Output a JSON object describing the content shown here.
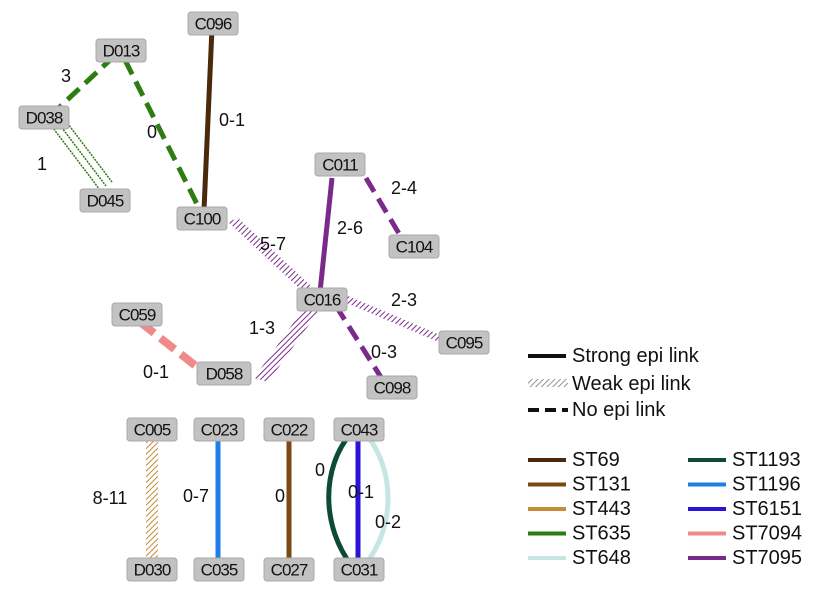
{
  "nodes": {
    "C096": "C096",
    "D013": "D013",
    "D038": "D038",
    "D045": "D045",
    "C100": "C100",
    "C011": "C011",
    "C104": "C104",
    "C016": "C016",
    "C095": "C095",
    "C059": "C059",
    "D058": "D058",
    "C098": "C098",
    "C005": "C005",
    "D030": "D030",
    "C023": "C023",
    "C035": "C035",
    "C022": "C022",
    "C027": "C027",
    "C043": "C043",
    "C031": "C031"
  },
  "edges": [
    {
      "id": "d038-d013",
      "from": "D038",
      "to": "D013",
      "label": "3",
      "style": "none",
      "st": "ST635"
    },
    {
      "id": "d013-c100",
      "from": "D013",
      "to": "C100",
      "label": "0",
      "style": "none",
      "st": "ST635"
    },
    {
      "id": "d038-d045",
      "from": "D038",
      "to": "D045",
      "label": "1",
      "style": "weak",
      "st": "ST635"
    },
    {
      "id": "c096-c100",
      "from": "C096",
      "to": "C100",
      "label": "0-1",
      "style": "strong",
      "st": "ST69"
    },
    {
      "id": "c100-c016",
      "from": "C100",
      "to": "C016",
      "label": "5-7",
      "style": "weak",
      "st": "ST7095"
    },
    {
      "id": "c011-c016",
      "from": "C011",
      "to": "C016",
      "label": "2-6",
      "style": "strong",
      "st": "ST7095"
    },
    {
      "id": "c011-c104",
      "from": "C011",
      "to": "C104",
      "label": "2-4",
      "style": "none",
      "st": "ST7095"
    },
    {
      "id": "c016-c095",
      "from": "C016",
      "to": "C095",
      "label": "2-3",
      "style": "weak",
      "st": "ST7095"
    },
    {
      "id": "c016-d058",
      "from": "C016",
      "to": "D058",
      "label": "1-3",
      "style": "weak",
      "st": "ST7095"
    },
    {
      "id": "c016-c098",
      "from": "C016",
      "to": "C098",
      "label": "0-3",
      "style": "none",
      "st": "ST7095"
    },
    {
      "id": "c059-d058",
      "from": "C059",
      "to": "D058",
      "label": "0-1",
      "style": "none",
      "st": "ST7094"
    },
    {
      "id": "c005-d030",
      "from": "C005",
      "to": "D030",
      "label": "8-11",
      "style": "weak",
      "st": "ST443"
    },
    {
      "id": "c023-c035",
      "from": "C023",
      "to": "C035",
      "label": "0-7",
      "style": "strong",
      "st": "ST1196"
    },
    {
      "id": "c022-c027",
      "from": "C022",
      "to": "C027",
      "label": "0",
      "style": "strong",
      "st": "ST131"
    },
    {
      "id": "c043-c031-a",
      "from": "C043",
      "to": "C031",
      "label": "0",
      "style": "strong",
      "st": "ST1193"
    },
    {
      "id": "c043-c031-b",
      "from": "C043",
      "to": "C031",
      "label": "0-1",
      "style": "strong",
      "st": "ST6151"
    },
    {
      "id": "c043-c031-c",
      "from": "C043",
      "to": "C031",
      "label": "0-2",
      "style": "strong",
      "st": "ST648"
    }
  ],
  "legend": {
    "link_types": [
      {
        "style": "strong",
        "label": "Strong epi link"
      },
      {
        "style": "weak",
        "label": "Weak epi link"
      },
      {
        "style": "none",
        "label": "No epi link"
      }
    ],
    "sequence_types": [
      {
        "name": "ST69",
        "color": "#4a2a0a"
      },
      {
        "name": "ST131",
        "color": "#7a4a16"
      },
      {
        "name": "ST443",
        "color": "#c58a3a"
      },
      {
        "name": "ST635",
        "color": "#2e7d12"
      },
      {
        "name": "ST648",
        "color": "#c5e6e2"
      },
      {
        "name": "ST1193",
        "color": "#0e4a3a"
      },
      {
        "name": "ST1196",
        "color": "#1f7fe6"
      },
      {
        "name": "ST6151",
        "color": "#2a12d8"
      },
      {
        "name": "ST7094",
        "color": "#f08a8a"
      },
      {
        "name": "ST7095",
        "color": "#7a2a8a"
      }
    ]
  }
}
